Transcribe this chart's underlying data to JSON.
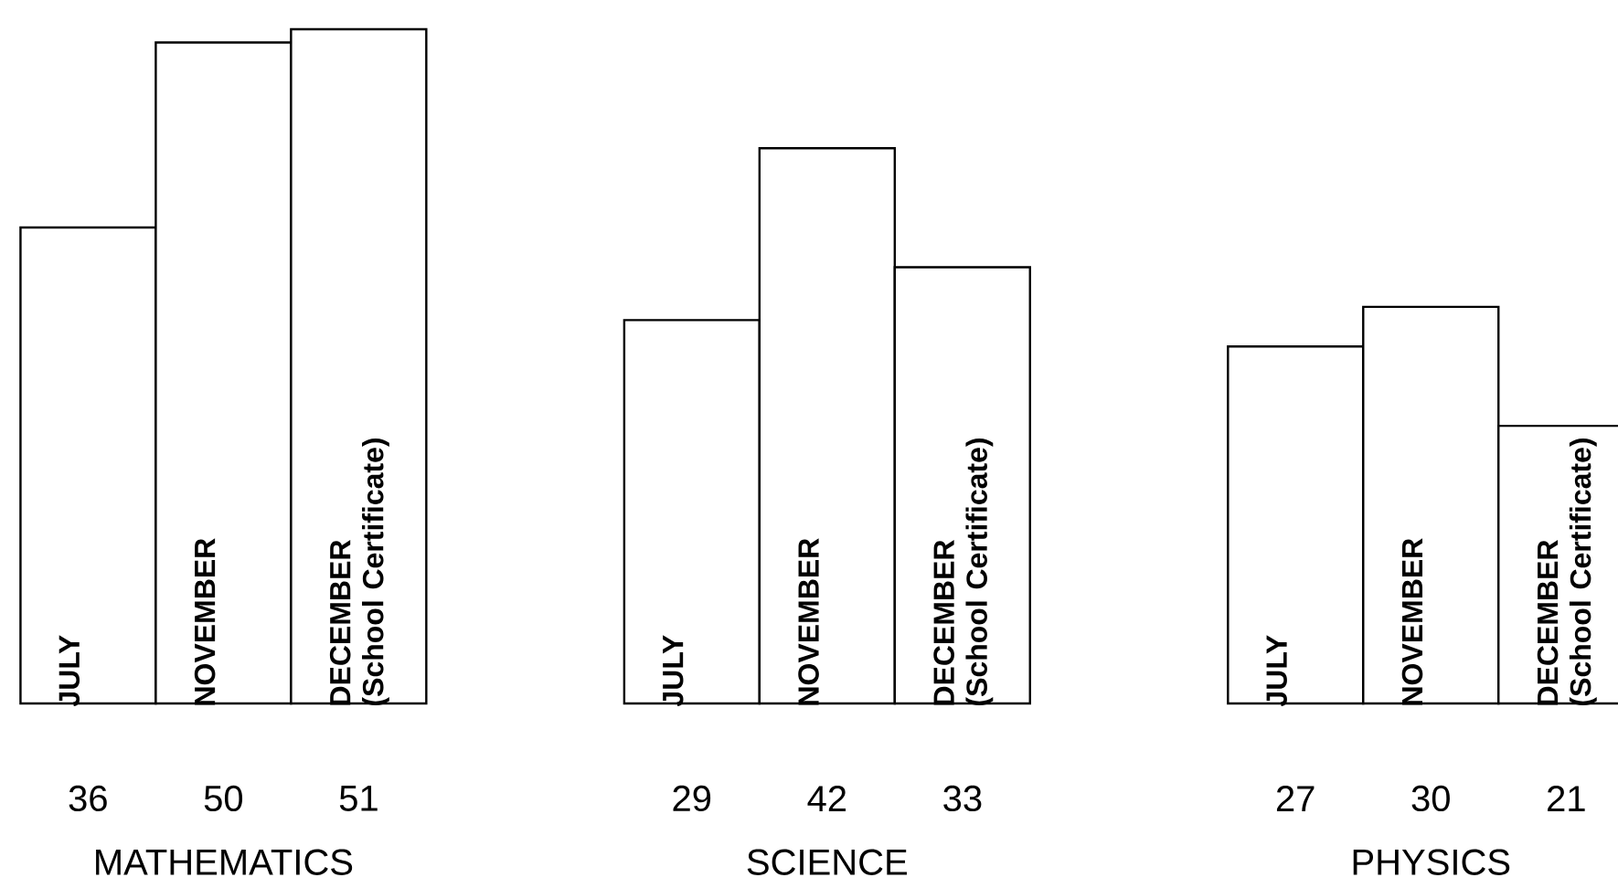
{
  "chart_data": {
    "type": "bar",
    "categories": [
      "MATHEMATICS",
      "SCIENCE",
      "PHYSICS"
    ],
    "series": [
      {
        "name": "JULY",
        "color": "#ffffff",
        "values": [
          36,
          29,
          27
        ]
      },
      {
        "name": "NOVEMBER",
        "color": "#ffffff",
        "values": [
          50,
          42,
          30
        ]
      },
      {
        "name": "DECEMBER (School Certificate)",
        "color": "#ffffff",
        "values": [
          51,
          33,
          21
        ]
      }
    ],
    "data_labels": true,
    "legend": false,
    "tick_labels": "x"
  }
}
